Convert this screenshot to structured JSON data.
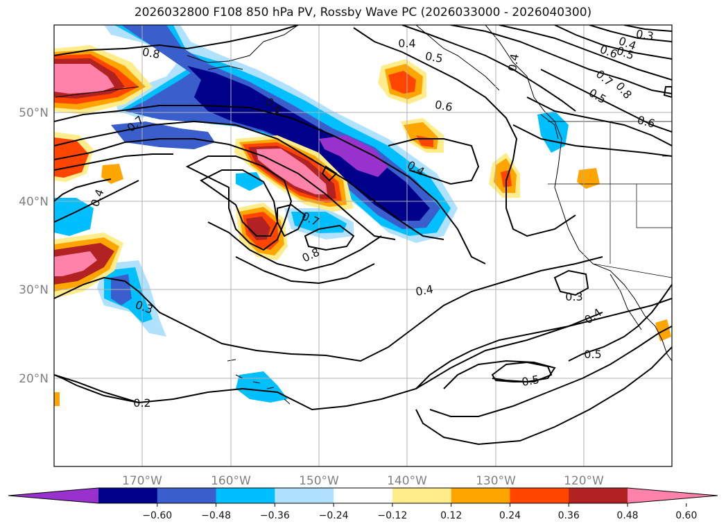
{
  "title": "2026032800 F108 850 hPa PV, Rossby Wave PC (2026033000 - 2026040300)",
  "map": {
    "lon_ticks": [
      "170°W",
      "160°W",
      "150°W",
      "140°W",
      "130°W",
      "120°W"
    ],
    "lat_ticks": [
      "50°N",
      "40°N",
      "30°N",
      "20°N"
    ],
    "grid": true,
    "colors": {
      "border": "#000000",
      "grid": "#b0b0b0",
      "contour": "#000000",
      "tick_text": "#7f7f7f"
    }
  },
  "colorbar": {
    "extend": "both",
    "colors": [
      "#9932cc",
      "#00008b",
      "#3a5fcd",
      "#00bfff",
      "#b0e2ff",
      "#ffffff",
      "#ffec8b",
      "#ffa500",
      "#ff4500",
      "#b22222",
      "#ff82ab"
    ],
    "tick_labels": [
      "−0.60",
      "−0.48",
      "−0.36",
      "−0.24",
      "−0.12",
      "0.12",
      "0.24",
      "0.36",
      "0.48",
      "0.60"
    ]
  },
  "contour_labels": [
    {
      "id": "c08a",
      "text": "0.8"
    },
    {
      "id": "c04a",
      "text": "0.4"
    },
    {
      "id": "c05a",
      "text": "0.5"
    },
    {
      "id": "c04b",
      "text": "0.4"
    },
    {
      "id": "c03a",
      "text": "0.3"
    },
    {
      "id": "c04c",
      "text": "0.4"
    },
    {
      "id": "c05b",
      "text": "0.5"
    },
    {
      "id": "c06a",
      "text": "0.6"
    },
    {
      "id": "c07a",
      "text": "0.7"
    },
    {
      "id": "c08b",
      "text": "0.8"
    },
    {
      "id": "c05c",
      "text": "0.5"
    },
    {
      "id": "c06b",
      "text": "0.6"
    },
    {
      "id": "c06c",
      "text": "0.6"
    },
    {
      "id": "c06d",
      "text": "0.6"
    },
    {
      "id": "c07b",
      "text": "0.7"
    },
    {
      "id": "c04d",
      "text": "0.4"
    },
    {
      "id": "c04e",
      "text": "0.4"
    },
    {
      "id": "c07c",
      "text": "0.7"
    },
    {
      "id": "c08c",
      "text": "0.8"
    },
    {
      "id": "c04f",
      "text": "0.4"
    },
    {
      "id": "c03b",
      "text": "0.3"
    },
    {
      "id": "c03c",
      "text": "0.3"
    },
    {
      "id": "c04g",
      "text": "0.4"
    },
    {
      "id": "c05d",
      "text": "0.5"
    },
    {
      "id": "c05e",
      "text": "0.5"
    },
    {
      "id": "c02a",
      "text": "0.2"
    }
  ]
}
